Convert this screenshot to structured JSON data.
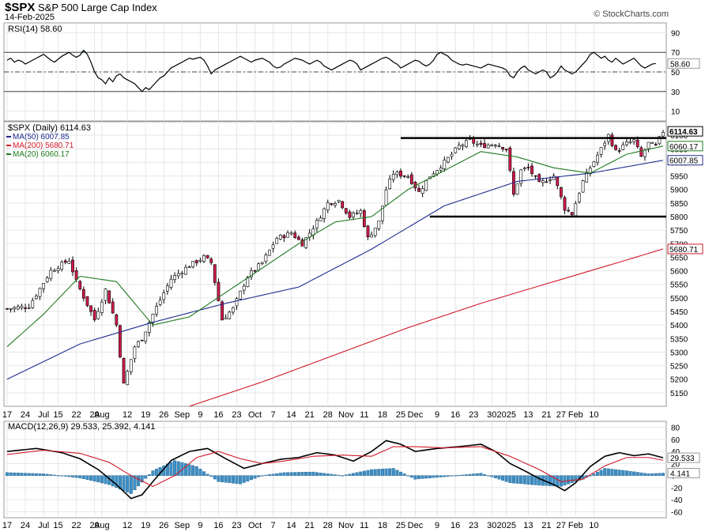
{
  "header": {
    "symbol": "$SPX",
    "name": "S&P 500 Large Cap Index",
    "date": "14-Feb-2025",
    "source": "© StockCharts.com"
  },
  "chart_data": [
    {
      "type": "line",
      "panel": "rsi",
      "label": "RSI(14) 58.60",
      "y_ticks": [
        90,
        70,
        50,
        30,
        10
      ],
      "reference_lines": [
        70,
        50,
        30
      ],
      "last_value_label": "58.60",
      "ylim": [
        0,
        100
      ],
      "series": [
        {
          "name": "RSI(14)",
          "color": "#000000",
          "values": [
            62,
            64,
            60,
            62,
            61,
            58,
            60,
            62,
            64,
            66,
            68,
            65,
            62,
            60,
            63,
            66,
            68,
            70,
            67,
            65,
            67,
            72,
            68,
            60,
            50,
            44,
            42,
            38,
            44,
            40,
            46,
            48,
            44,
            42,
            40,
            38,
            34,
            30,
            34,
            32,
            36,
            40,
            44,
            46,
            50,
            54,
            56,
            58,
            60,
            62,
            64,
            63,
            64,
            65,
            62,
            56,
            48,
            52,
            54,
            56,
            58,
            60,
            62,
            64,
            66,
            64,
            62,
            60,
            62,
            63,
            64,
            62,
            60,
            56,
            54,
            55,
            58,
            60,
            62,
            64,
            63,
            62,
            60,
            58,
            60,
            62,
            60,
            56,
            54,
            52,
            54,
            56,
            58,
            60,
            62,
            61,
            58,
            52,
            54,
            56,
            58,
            60,
            62,
            64,
            65,
            63,
            60,
            58,
            54,
            56,
            58,
            60,
            62,
            61,
            58,
            56,
            58,
            62,
            68,
            70,
            68,
            66,
            62,
            60,
            58,
            57,
            58,
            57,
            56,
            55,
            54,
            56,
            58,
            57,
            56,
            55,
            54,
            52,
            46,
            44,
            50,
            54,
            56,
            52,
            50,
            48,
            50,
            52,
            50,
            44,
            46,
            50,
            56,
            52,
            50,
            48,
            50,
            54,
            58,
            62,
            68,
            70,
            67,
            64,
            66,
            62,
            60,
            64,
            61,
            58,
            60,
            62,
            64,
            60,
            56,
            54,
            56,
            58,
            58.6
          ]
        }
      ]
    },
    {
      "type": "candlestick",
      "panel": "price",
      "label": "$SPX (Daily) 6114.63",
      "legend": [
        {
          "name": "MA(50) 6007.85",
          "color": "#1f2d8f"
        },
        {
          "name": "MA(200) 5680.71",
          "color": "#d11a2a"
        },
        {
          "name": "MA(20) 6060.17",
          "color": "#1f7a1f"
        }
      ],
      "y_ticks": [
        6100,
        6050,
        6000,
        5950,
        5900,
        5850,
        5800,
        5750,
        5700,
        5650,
        5600,
        5550,
        5500,
        5450,
        5400,
        5350,
        5300,
        5250,
        5200,
        5150
      ],
      "ylim": [
        5100,
        6150
      ],
      "price_labels": [
        "6114.63",
        "6060.17",
        "6007.85",
        "5680.71"
      ],
      "horizontal_lines": [
        6090,
        5800
      ],
      "ohlc_anchors": [
        {
          "i": 0,
          "c": 5460
        },
        {
          "i": 6,
          "c": 5470
        },
        {
          "i": 12,
          "c": 5600
        },
        {
          "i": 17,
          "c": 5640
        },
        {
          "i": 19,
          "c": 5560
        },
        {
          "i": 24,
          "c": 5420
        },
        {
          "i": 27,
          "c": 5530
        },
        {
          "i": 30,
          "c": 5400
        },
        {
          "i": 32,
          "c": 5180
        },
        {
          "i": 35,
          "c": 5320
        },
        {
          "i": 37,
          "c": 5350
        },
        {
          "i": 40,
          "c": 5440
        },
        {
          "i": 45,
          "c": 5570
        },
        {
          "i": 50,
          "c": 5620
        },
        {
          "i": 54,
          "c": 5650
        },
        {
          "i": 56,
          "c": 5630
        },
        {
          "i": 59,
          "c": 5420
        },
        {
          "i": 62,
          "c": 5460
        },
        {
          "i": 66,
          "c": 5580
        },
        {
          "i": 70,
          "c": 5630
        },
        {
          "i": 74,
          "c": 5720
        },
        {
          "i": 78,
          "c": 5740
        },
        {
          "i": 81,
          "c": 5700
        },
        {
          "i": 85,
          "c": 5780
        },
        {
          "i": 88,
          "c": 5850
        },
        {
          "i": 91,
          "c": 5860
        },
        {
          "i": 94,
          "c": 5800
        },
        {
          "i": 97,
          "c": 5820
        },
        {
          "i": 99,
          "c": 5720
        },
        {
          "i": 102,
          "c": 5780
        },
        {
          "i": 104,
          "c": 5900
        },
        {
          "i": 106,
          "c": 5960
        },
        {
          "i": 110,
          "c": 5950
        },
        {
          "i": 113,
          "c": 5890
        },
        {
          "i": 116,
          "c": 5950
        },
        {
          "i": 120,
          "c": 6000
        },
        {
          "i": 124,
          "c": 6060
        },
        {
          "i": 127,
          "c": 6080
        },
        {
          "i": 130,
          "c": 6060
        },
        {
          "i": 134,
          "c": 6070
        },
        {
          "i": 137,
          "c": 6050
        },
        {
          "i": 139,
          "c": 5880
        },
        {
          "i": 141,
          "c": 5970
        },
        {
          "i": 143,
          "c": 5980
        },
        {
          "i": 146,
          "c": 5920
        },
        {
          "i": 150,
          "c": 5950
        },
        {
          "i": 153,
          "c": 5830
        },
        {
          "i": 155,
          "c": 5810
        },
        {
          "i": 158,
          "c": 5930
        },
        {
          "i": 160,
          "c": 5980
        },
        {
          "i": 163,
          "c": 6050
        },
        {
          "i": 165,
          "c": 6100
        },
        {
          "i": 167,
          "c": 6040
        },
        {
          "i": 170,
          "c": 6070
        },
        {
          "i": 172,
          "c": 6080
        },
        {
          "i": 174,
          "c": 6020
        },
        {
          "i": 176,
          "c": 6070
        },
        {
          "i": 178,
          "c": 6060
        },
        {
          "i": 180,
          "c": 6114.63
        }
      ],
      "series": [
        {
          "name": "MA(50)",
          "color": "#1f2d8f",
          "points": [
            [
              0,
              5200
            ],
            [
              20,
              5330
            ],
            [
              40,
              5410
            ],
            [
              60,
              5480
            ],
            [
              80,
              5540
            ],
            [
              100,
              5680
            ],
            [
              120,
              5840
            ],
            [
              140,
              5930
            ],
            [
              160,
              5960
            ],
            [
              180,
              6007.85
            ]
          ]
        },
        {
          "name": "MA(200)",
          "color": "#d11a2a",
          "points": [
            [
              50,
              5100
            ],
            [
              70,
              5190
            ],
            [
              90,
              5290
            ],
            [
              110,
              5390
            ],
            [
              130,
              5480
            ],
            [
              150,
              5560
            ],
            [
              170,
              5640
            ],
            [
              180,
              5680.71
            ]
          ]
        },
        {
          "name": "MA(20)",
          "color": "#1f7a1f",
          "points": [
            [
              0,
              5320
            ],
            [
              10,
              5440
            ],
            [
              20,
              5580
            ],
            [
              30,
              5560
            ],
            [
              40,
              5400
            ],
            [
              50,
              5430
            ],
            [
              60,
              5520
            ],
            [
              70,
              5610
            ],
            [
              80,
              5700
            ],
            [
              90,
              5780
            ],
            [
              100,
              5800
            ],
            [
              110,
              5900
            ],
            [
              120,
              5970
            ],
            [
              130,
              6040
            ],
            [
              140,
              6020
            ],
            [
              150,
              5980
            ],
            [
              160,
              5960
            ],
            [
              170,
              6030
            ],
            [
              180,
              6060.17
            ]
          ]
        }
      ]
    },
    {
      "type": "line",
      "panel": "macd",
      "label": "MACD(12,26,9) 29.533, 25.392, 4.141",
      "y_ticks": [
        80,
        60,
        40,
        20,
        0,
        -20,
        -40,
        -60
      ],
      "ylim": [
        -70,
        90
      ],
      "last_value_labels": [
        "29.533",
        "4.141"
      ],
      "series": [
        {
          "name": "MACD",
          "color": "#000000",
          "points": [
            [
              0,
              40
            ],
            [
              8,
              45
            ],
            [
              15,
              38
            ],
            [
              20,
              28
            ],
            [
              25,
              10
            ],
            [
              30,
              -15
            ],
            [
              34,
              -38
            ],
            [
              37,
              -32
            ],
            [
              40,
              -10
            ],
            [
              45,
              25
            ],
            [
              50,
              40
            ],
            [
              55,
              45
            ],
            [
              60,
              28
            ],
            [
              65,
              12
            ],
            [
              70,
              20
            ],
            [
              75,
              27
            ],
            [
              80,
              30
            ],
            [
              85,
              38
            ],
            [
              90,
              34
            ],
            [
              95,
              24
            ],
            [
              100,
              40
            ],
            [
              104,
              58
            ],
            [
              108,
              52
            ],
            [
              112,
              40
            ],
            [
              118,
              45
            ],
            [
              124,
              48
            ],
            [
              130,
              52
            ],
            [
              134,
              40
            ],
            [
              138,
              20
            ],
            [
              142,
              8
            ],
            [
              146,
              -5
            ],
            [
              150,
              -15
            ],
            [
              153,
              -25
            ],
            [
              156,
              -12
            ],
            [
              160,
              15
            ],
            [
              164,
              32
            ],
            [
              168,
              38
            ],
            [
              172,
              33
            ],
            [
              176,
              36
            ],
            [
              180,
              29.533
            ]
          ]
        },
        {
          "name": "Signal",
          "color": "#d11a2a",
          "points": [
            [
              0,
              35
            ],
            [
              10,
              42
            ],
            [
              20,
              37
            ],
            [
              28,
              22
            ],
            [
              34,
              0
            ],
            [
              40,
              -18
            ],
            [
              46,
              0
            ],
            [
              52,
              30
            ],
            [
              58,
              40
            ],
            [
              64,
              28
            ],
            [
              70,
              20
            ],
            [
              76,
              24
            ],
            [
              84,
              32
            ],
            [
              92,
              34
            ],
            [
              100,
              32
            ],
            [
              106,
              48
            ],
            [
              112,
              48
            ],
            [
              120,
              46
            ],
            [
              130,
              48
            ],
            [
              138,
              32
            ],
            [
              146,
              10
            ],
            [
              152,
              -10
            ],
            [
              158,
              -6
            ],
            [
              164,
              16
            ],
            [
              170,
              30
            ],
            [
              176,
              30
            ],
            [
              180,
              25.392
            ]
          ]
        }
      ],
      "histogram": {
        "name": "Histogram",
        "color": "#3d8fc6",
        "points": [
          [
            0,
            5
          ],
          [
            10,
            3
          ],
          [
            20,
            -4
          ],
          [
            28,
            -15
          ],
          [
            34,
            -30
          ],
          [
            40,
            8
          ],
          [
            46,
            25
          ],
          [
            52,
            15
          ],
          [
            58,
            -10
          ],
          [
            64,
            -14
          ],
          [
            70,
            0
          ],
          [
            76,
            5
          ],
          [
            84,
            6
          ],
          [
            92,
            0
          ],
          [
            100,
            10
          ],
          [
            106,
            12
          ],
          [
            112,
            -6
          ],
          [
            120,
            -2
          ],
          [
            130,
            4
          ],
          [
            138,
            -12
          ],
          [
            146,
            -16
          ],
          [
            152,
            -18
          ],
          [
            158,
            -6
          ],
          [
            164,
            12
          ],
          [
            170,
            8
          ],
          [
            176,
            3
          ],
          [
            180,
            4.141
          ]
        ]
      }
    }
  ],
  "x_axis": {
    "labels": [
      {
        "i": 0,
        "text": "17"
      },
      {
        "i": 5,
        "text": "24"
      },
      {
        "i": 10,
        "text": "Jul"
      },
      {
        "i": 14,
        "text": "15"
      },
      {
        "i": 19,
        "text": "22"
      },
      {
        "i": 24,
        "text": "29"
      },
      {
        "i": 26,
        "text": "Aug"
      },
      {
        "i": 33,
        "text": "12"
      },
      {
        "i": 38,
        "text": "19"
      },
      {
        "i": 43,
        "text": "26"
      },
      {
        "i": 48,
        "text": "Sep"
      },
      {
        "i": 53,
        "text": "9"
      },
      {
        "i": 58,
        "text": "16"
      },
      {
        "i": 63,
        "text": "23"
      },
      {
        "i": 68,
        "text": "Oct"
      },
      {
        "i": 73,
        "text": "7"
      },
      {
        "i": 78,
        "text": "14"
      },
      {
        "i": 83,
        "text": "21"
      },
      {
        "i": 88,
        "text": "28"
      },
      {
        "i": 93,
        "text": "Nov"
      },
      {
        "i": 98,
        "text": "11"
      },
      {
        "i": 103,
        "text": "18"
      },
      {
        "i": 108,
        "text": "25"
      },
      {
        "i": 112,
        "text": "Dec"
      },
      {
        "i": 118,
        "text": "9"
      },
      {
        "i": 123,
        "text": "16"
      },
      {
        "i": 128,
        "text": "23"
      },
      {
        "i": 133,
        "text": "30"
      },
      {
        "i": 137,
        "text": "2025"
      },
      {
        "i": 143,
        "text": "13"
      },
      {
        "i": 148,
        "text": "21"
      },
      {
        "i": 152,
        "text": "27"
      },
      {
        "i": 156,
        "text": "Feb"
      },
      {
        "i": 161,
        "text": "10"
      }
    ]
  }
}
